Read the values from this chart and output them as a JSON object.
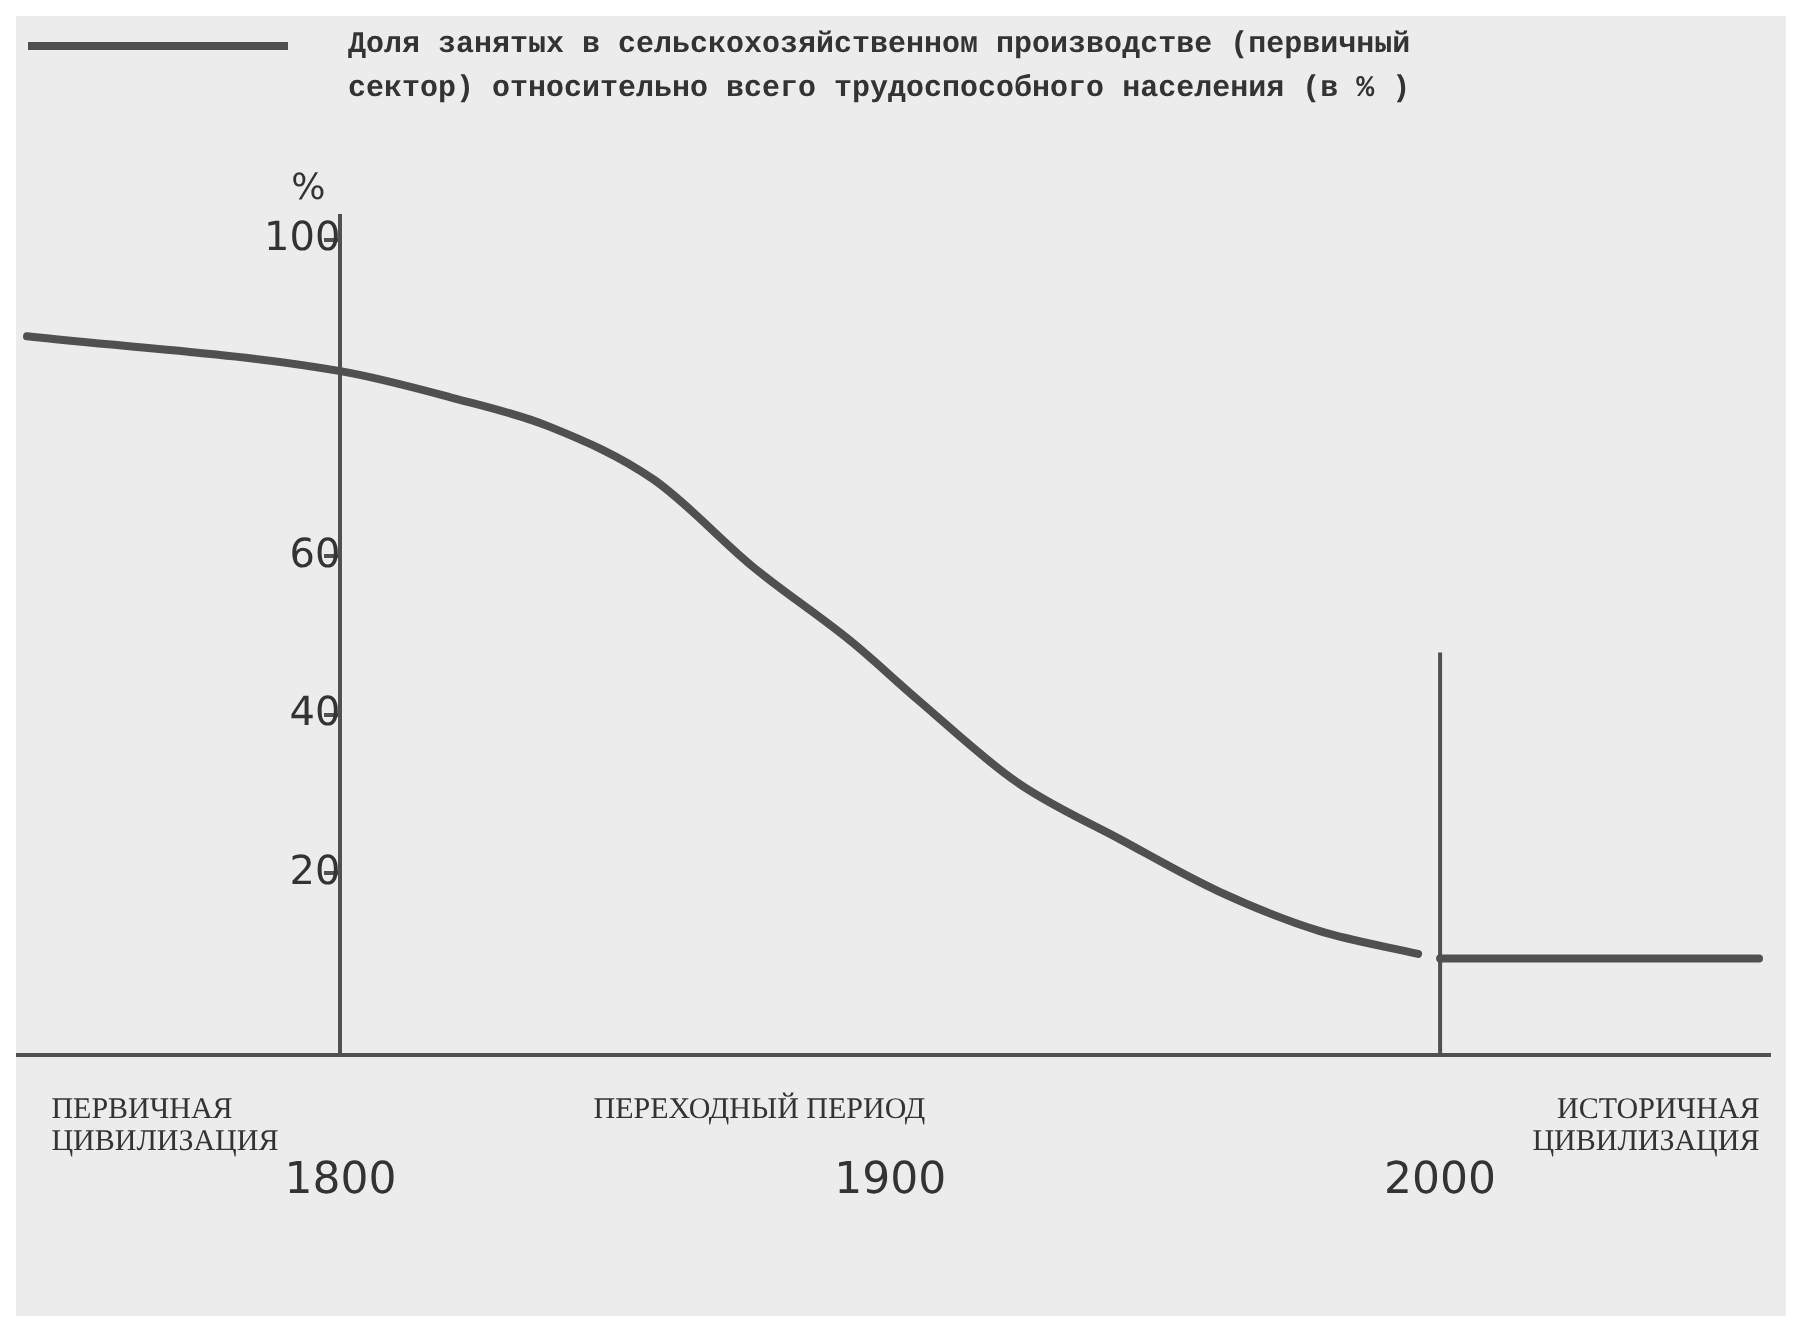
{
  "chart_data": {
    "type": "line",
    "ylabel": "%",
    "legend": "top left",
    "grid": false,
    "marker": "none",
    "line_style": "solid",
    "x": [
      1743,
      1800,
      1820,
      1838,
      1857,
      1875,
      1893,
      1905,
      1923,
      1942,
      1960,
      1978,
      1996,
      1998,
      2000,
      2058
    ],
    "series": [
      {
        "name": "Доля занятых в сельскохозяйственном производстве (первичный сектор) относительно всего трудоспособного населения (в % )",
        "color": "#505050",
        "values": [
          87.8,
          83.4,
          80.1,
          76.4,
          69.7,
          58.7,
          49.2,
          41.9,
          31.5,
          24.2,
          17.6,
          12.7,
          9.8,
          null,
          9.2,
          9.2
        ]
      }
    ],
    "xlim": [
      1741,
      2060
    ],
    "xticks": [
      1800,
      1900,
      2000
    ],
    "ylim": [
      -3,
      103
    ],
    "yticks": [
      20,
      40,
      60,
      100
    ],
    "ref_lines": [
      {
        "axis": "x",
        "value": 2000,
        "color": "#505050"
      }
    ],
    "annotations": [
      "ПЕРВИЧНАЯ ЦИВИЛИЗАЦИЯ",
      "ПЕРЕХОДНЫЙ ПЕРИОД",
      "ИСТОРИЧНАЯ ЦИВИЛИЗАЦИЯ"
    ]
  }
}
